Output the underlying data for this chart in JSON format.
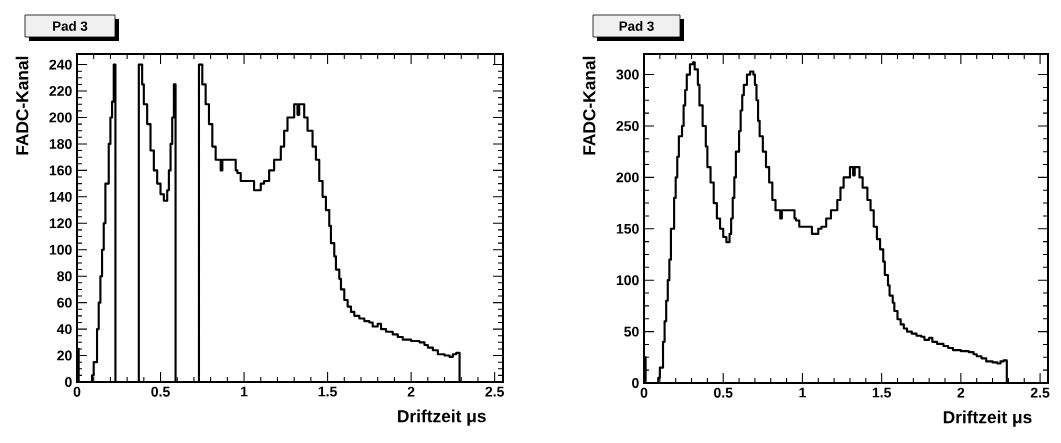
{
  "chart_data": [
    {
      "type": "step",
      "title": "Pad 3",
      "xlabel": "Driftzeit μs",
      "ylabel": "FADC-Kanal",
      "color": "#000000",
      "x": [
        0,
        0.01,
        0.09,
        0.1,
        0.12,
        0.13,
        0.14,
        0.15,
        0.16,
        0.17,
        0.19,
        0.2,
        0.21,
        0.22,
        0.23,
        0.37,
        0.39,
        0.4,
        0.42,
        0.44,
        0.46,
        0.48,
        0.5,
        0.52,
        0.54,
        0.55,
        0.56,
        0.57,
        0.58,
        0.59,
        0.73,
        0.75,
        0.77,
        0.79,
        0.81,
        0.83,
        0.86,
        0.87,
        0.95,
        0.96,
        0.98,
        1.06,
        1.1,
        1.12,
        1.15,
        1.18,
        1.22,
        1.24,
        1.26,
        1.3,
        1.32,
        1.33,
        1.36,
        1.38,
        1.41,
        1.43,
        1.45,
        1.47,
        1.49,
        1.51,
        1.52,
        1.54,
        1.55,
        1.57,
        1.58,
        1.6,
        1.62,
        1.64,
        1.66,
        1.69,
        1.72,
        1.75,
        1.77,
        1.8,
        1.82,
        1.85,
        1.89,
        1.92,
        1.95,
        2.0,
        2.05,
        2.08,
        2.1,
        2.13,
        2.16,
        2.2,
        2.23,
        2.25,
        2.27,
        2.29
      ],
      "values": [
        25,
        0,
        5,
        15,
        40,
        60,
        80,
        100,
        120,
        150,
        180,
        200,
        212,
        240,
        0,
        240,
        225,
        210,
        195,
        175,
        160,
        150,
        142,
        137,
        145,
        160,
        180,
        200,
        225,
        0,
        240,
        225,
        210,
        195,
        178,
        168,
        160,
        168,
        160,
        158,
        152,
        145,
        150,
        152,
        160,
        168,
        178,
        190,
        200,
        210,
        202,
        210,
        200,
        190,
        178,
        168,
        152,
        140,
        130,
        118,
        105,
        95,
        85,
        78,
        70,
        62,
        57,
        53,
        50,
        48,
        46,
        45,
        42,
        44,
        40,
        38,
        36,
        34,
        32,
        31,
        30,
        28,
        26,
        24,
        21,
        20,
        19,
        21,
        22,
        0
      ],
      "xlim": [
        0,
        2.55
      ],
      "ylim": [
        0,
        248
      ],
      "xticks": [
        0,
        0.5,
        1,
        1.5,
        2,
        2.5
      ],
      "yticks": [
        0,
        20,
        40,
        60,
        80,
        100,
        120,
        140,
        160,
        180,
        200,
        220,
        240
      ]
    },
    {
      "type": "step",
      "title": "Pad 3",
      "xlabel": "Driftzeit μs",
      "ylabel": "FADC-Kanal",
      "color": "#000000",
      "x": [
        0,
        0.01,
        0.09,
        0.1,
        0.12,
        0.13,
        0.14,
        0.15,
        0.16,
        0.17,
        0.19,
        0.2,
        0.21,
        0.22,
        0.24,
        0.25,
        0.26,
        0.27,
        0.29,
        0.31,
        0.32,
        0.34,
        0.35,
        0.37,
        0.39,
        0.4,
        0.42,
        0.44,
        0.46,
        0.48,
        0.5,
        0.52,
        0.54,
        0.55,
        0.56,
        0.57,
        0.58,
        0.6,
        0.61,
        0.62,
        0.63,
        0.65,
        0.67,
        0.69,
        0.7,
        0.71,
        0.72,
        0.73,
        0.75,
        0.77,
        0.79,
        0.81,
        0.83,
        0.86,
        0.87,
        0.95,
        0.96,
        0.98,
        1.06,
        1.1,
        1.12,
        1.15,
        1.18,
        1.22,
        1.24,
        1.26,
        1.3,
        1.32,
        1.33,
        1.36,
        1.38,
        1.41,
        1.43,
        1.45,
        1.47,
        1.49,
        1.51,
        1.52,
        1.54,
        1.55,
        1.57,
        1.58,
        1.6,
        1.62,
        1.64,
        1.66,
        1.69,
        1.72,
        1.75,
        1.77,
        1.8,
        1.82,
        1.85,
        1.89,
        1.92,
        1.95,
        2.0,
        2.05,
        2.08,
        2.1,
        2.13,
        2.16,
        2.2,
        2.23,
        2.25,
        2.27,
        2.29
      ],
      "values": [
        25,
        0,
        5,
        15,
        40,
        60,
        80,
        100,
        120,
        150,
        180,
        200,
        220,
        240,
        250,
        270,
        285,
        300,
        310,
        312,
        305,
        290,
        270,
        250,
        230,
        210,
        195,
        175,
        160,
        150,
        142,
        137,
        145,
        160,
        180,
        200,
        225,
        245,
        265,
        280,
        290,
        300,
        303,
        300,
        290,
        275,
        255,
        240,
        225,
        210,
        195,
        178,
        168,
        160,
        168,
        160,
        158,
        152,
        145,
        150,
        152,
        160,
        168,
        178,
        190,
        200,
        210,
        202,
        210,
        200,
        190,
        178,
        168,
        152,
        140,
        130,
        118,
        105,
        95,
        85,
        78,
        70,
        62,
        57,
        53,
        50,
        48,
        46,
        45,
        42,
        44,
        40,
        38,
        36,
        34,
        32,
        31,
        30,
        28,
        26,
        24,
        21,
        20,
        19,
        21,
        22,
        0
      ],
      "xlim": [
        0,
        2.55
      ],
      "ylim": [
        0,
        320
      ],
      "xticks": [
        0,
        0.5,
        1,
        1.5,
        2,
        2.5
      ],
      "yticks": [
        0,
        50,
        100,
        150,
        200,
        250,
        300
      ]
    }
  ]
}
